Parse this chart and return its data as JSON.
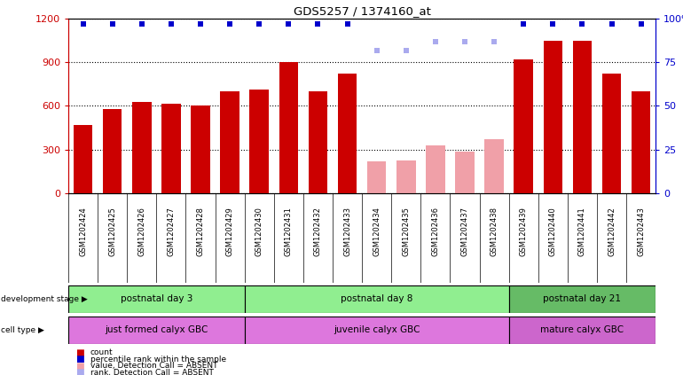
{
  "title": "GDS5257 / 1374160_at",
  "samples": [
    "GSM1202424",
    "GSM1202425",
    "GSM1202426",
    "GSM1202427",
    "GSM1202428",
    "GSM1202429",
    "GSM1202430",
    "GSM1202431",
    "GSM1202432",
    "GSM1202433",
    "GSM1202434",
    "GSM1202435",
    "GSM1202436",
    "GSM1202437",
    "GSM1202438",
    "GSM1202439",
    "GSM1202440",
    "GSM1202441",
    "GSM1202442",
    "GSM1202443"
  ],
  "counts": [
    470,
    580,
    630,
    615,
    605,
    700,
    710,
    905,
    700,
    820,
    220,
    225,
    330,
    285,
    370,
    920,
    1050,
    1050,
    820,
    700
  ],
  "absent": [
    false,
    false,
    false,
    false,
    false,
    false,
    false,
    false,
    false,
    false,
    true,
    true,
    true,
    true,
    true,
    false,
    false,
    false,
    false,
    false
  ],
  "percentile_ranks": [
    97,
    97,
    97,
    97,
    97,
    97,
    97,
    97,
    97,
    97,
    82,
    82,
    87,
    87,
    87,
    97,
    97,
    97,
    97,
    97
  ],
  "absent_ranks": [
    false,
    false,
    false,
    false,
    false,
    false,
    false,
    false,
    false,
    false,
    true,
    true,
    true,
    true,
    true,
    false,
    false,
    false,
    false,
    false
  ],
  "dev_stage_color": "#90ee90",
  "dev_stage_color2": "#66bb66",
  "cell_type_color": "#dd77dd",
  "cell_type_color2": "#cc66cc",
  "bar_color_present": "#cc0000",
  "bar_color_absent": "#f0a0a8",
  "rank_color_present": "#0000cc",
  "rank_color_absent": "#aaaaee",
  "ylim_left": [
    0,
    1200
  ],
  "ylim_right": [
    0,
    100
  ],
  "yticks_left": [
    0,
    300,
    600,
    900,
    1200
  ],
  "yticks_right": [
    0,
    25,
    50,
    75,
    100
  ],
  "bg_color": "#ffffff",
  "plot_bg": "#ffffff",
  "tick_bg": "#cccccc"
}
